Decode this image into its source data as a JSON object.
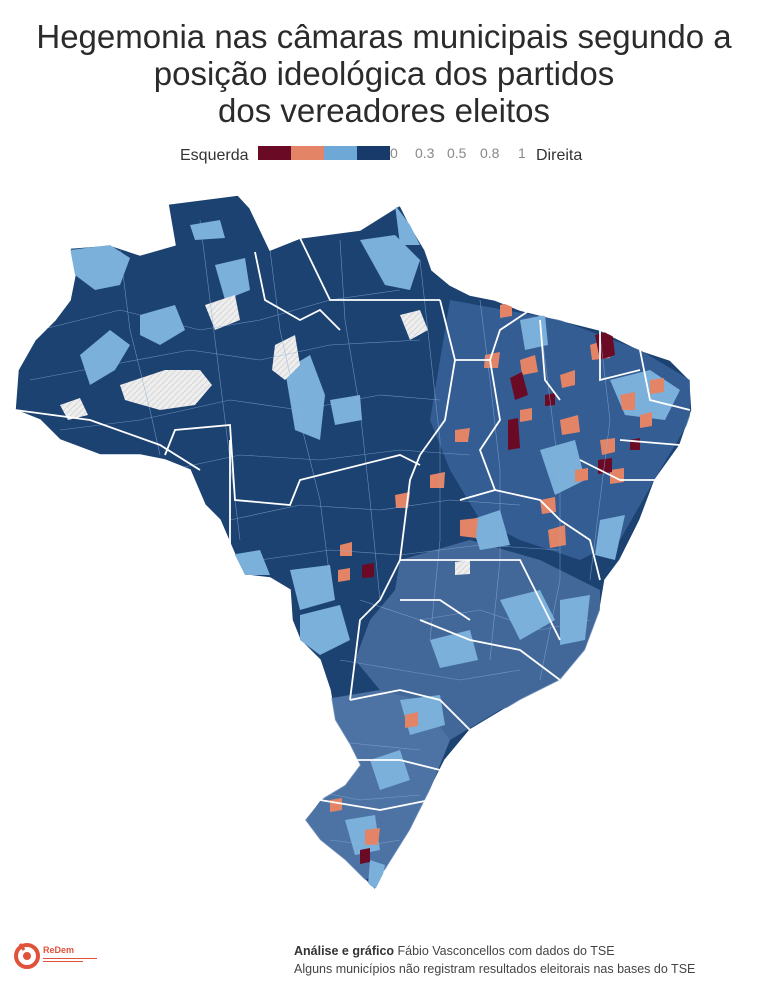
{
  "title": {
    "line1": "Hegemonia nas câmaras municipais segundo a",
    "line2": "posição ideológica dos partidos",
    "line3": "dos vereadores eleitos"
  },
  "legend": {
    "left_label": "Esquerda",
    "right_label": "Direita",
    "ticks": [
      "0",
      "0.3",
      "0.5",
      "0.8",
      "1"
    ],
    "colors": [
      "#6b0a24",
      "#e48467",
      "#6da8d6",
      "#173a6b"
    ]
  },
  "map": {
    "country": "Brasil",
    "unit": "municípios",
    "fill_colors": {
      "esquerda": "#6b0a24",
      "centro_esquerda": "#e48467",
      "centro_direita": "#6da8d6",
      "direita": "#1c4272",
      "sem_dados": "#e8e8e8",
      "borders": "#9fb8d6"
    }
  },
  "footer": {
    "logo_text": "ReDem",
    "credit_bold": "Análise e gráfico",
    "credit_rest": " Fábio Vasconcellos com dados do TSE",
    "note": "Alguns municípios não registram resultados eleitorais nas bases do TSE"
  }
}
